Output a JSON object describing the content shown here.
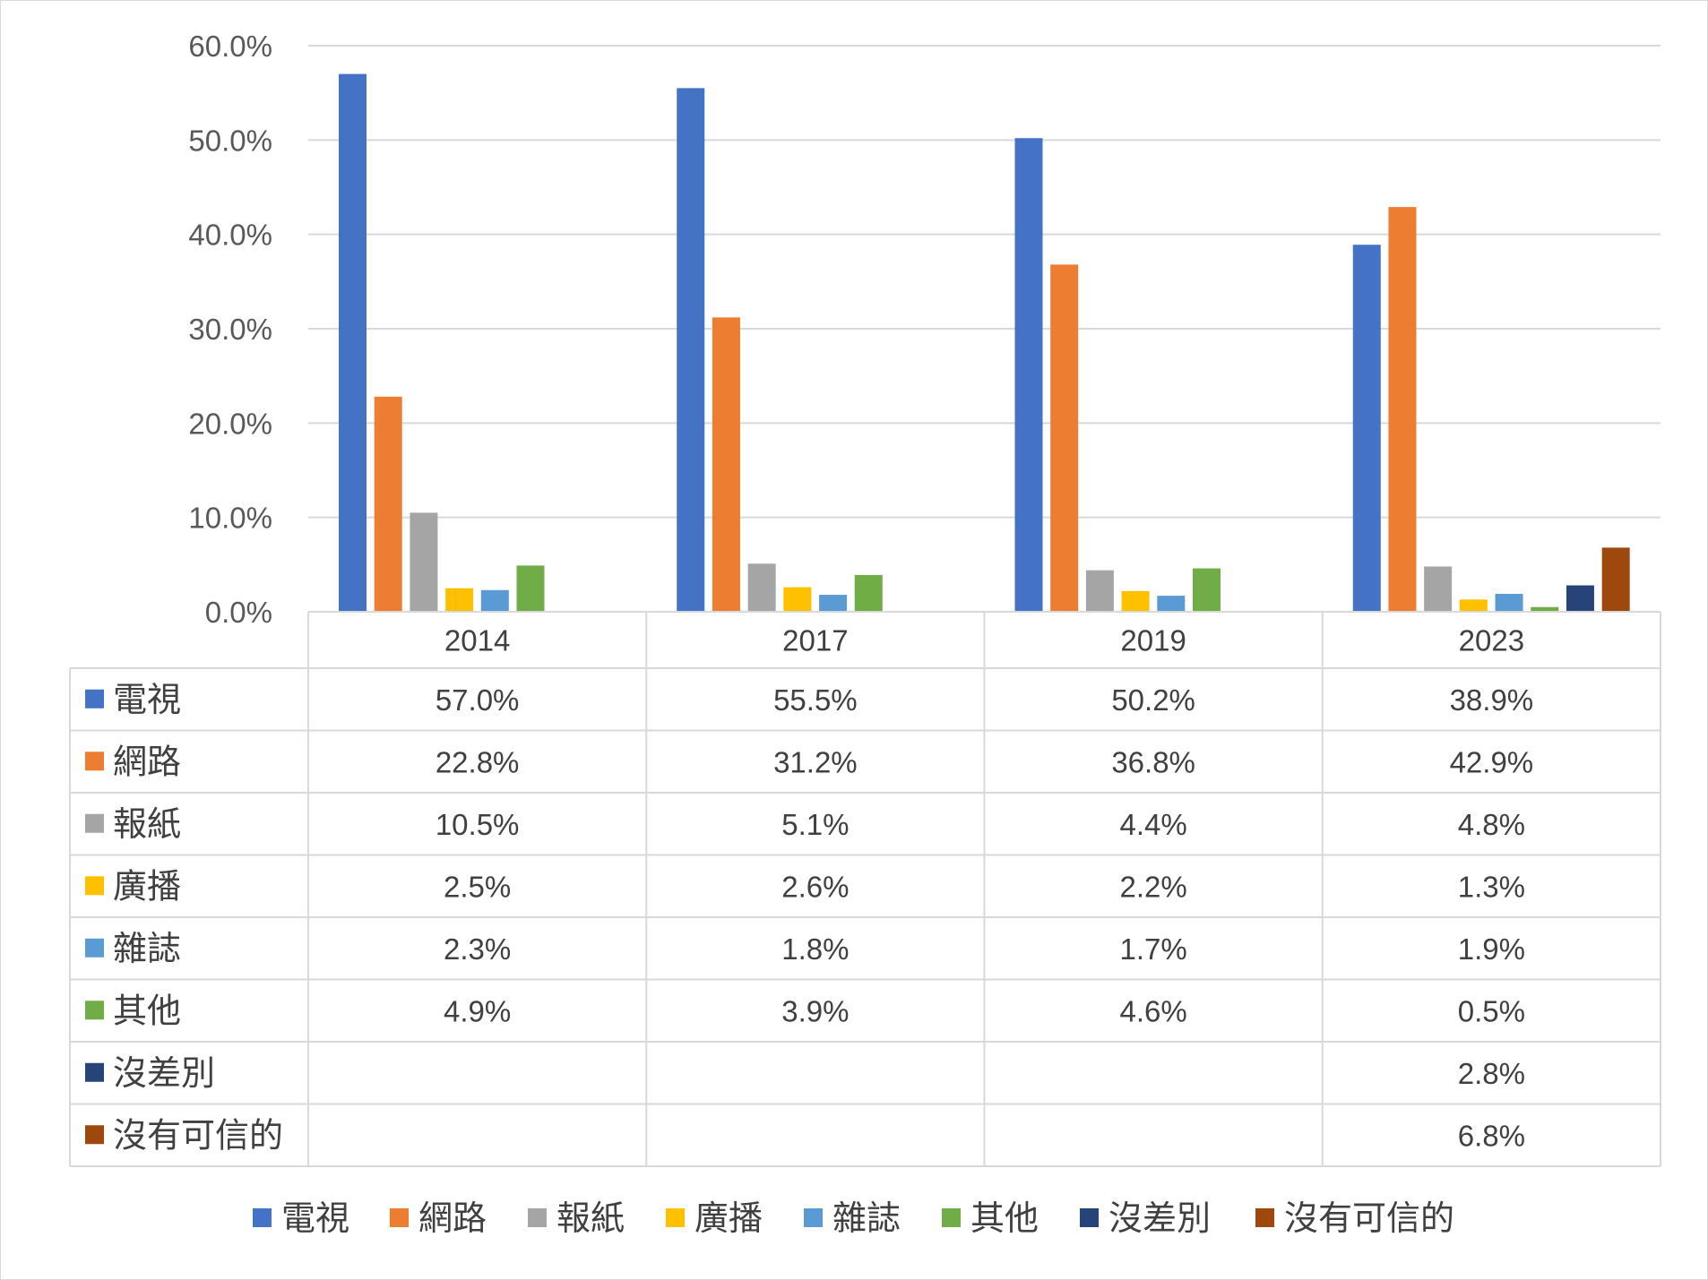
{
  "chart_data": {
    "type": "bar",
    "categories": [
      "2014",
      "2017",
      "2019",
      "2023"
    ],
    "ylim": [
      0,
      60
    ],
    "y_ticks": [
      "0.0%",
      "10.0%",
      "20.0%",
      "30.0%",
      "40.0%",
      "50.0%",
      "60.0%"
    ],
    "grid": true,
    "legend_position": "bottom",
    "data_table": true,
    "series": [
      {
        "name": "電視",
        "color": "#4472C4",
        "values": [
          57.0,
          55.5,
          50.2,
          38.9
        ],
        "labels": [
          "57.0%",
          "55.5%",
          "50.2%",
          "38.9%"
        ]
      },
      {
        "name": "網路",
        "color": "#ED7D31",
        "values": [
          22.8,
          31.2,
          36.8,
          42.9
        ],
        "labels": [
          "22.8%",
          "31.2%",
          "36.8%",
          "42.9%"
        ]
      },
      {
        "name": "報紙",
        "color": "#A5A5A5",
        "values": [
          10.5,
          5.1,
          4.4,
          4.8
        ],
        "labels": [
          "10.5%",
          "5.1%",
          "4.4%",
          "4.8%"
        ]
      },
      {
        "name": "廣播",
        "color": "#FFC000",
        "values": [
          2.5,
          2.6,
          2.2,
          1.3
        ],
        "labels": [
          "2.5%",
          "2.6%",
          "2.2%",
          "1.3%"
        ]
      },
      {
        "name": "雜誌",
        "color": "#5B9BD5",
        "values": [
          2.3,
          1.8,
          1.7,
          1.9
        ],
        "labels": [
          "2.3%",
          "1.8%",
          "1.7%",
          "1.9%"
        ]
      },
      {
        "name": "其他",
        "color": "#70AD47",
        "values": [
          4.9,
          3.9,
          4.6,
          0.5
        ],
        "labels": [
          "4.9%",
          "3.9%",
          "4.6%",
          "0.5%"
        ]
      },
      {
        "name": "沒差別",
        "color": "#264478",
        "values": [
          null,
          null,
          null,
          2.8
        ],
        "labels": [
          "",
          "",
          "",
          "2.8%"
        ]
      },
      {
        "name": "沒有可信的",
        "color": "#9E480E",
        "values": [
          null,
          null,
          null,
          6.8
        ],
        "labels": [
          "",
          "",
          "",
          "6.8%"
        ]
      }
    ]
  }
}
